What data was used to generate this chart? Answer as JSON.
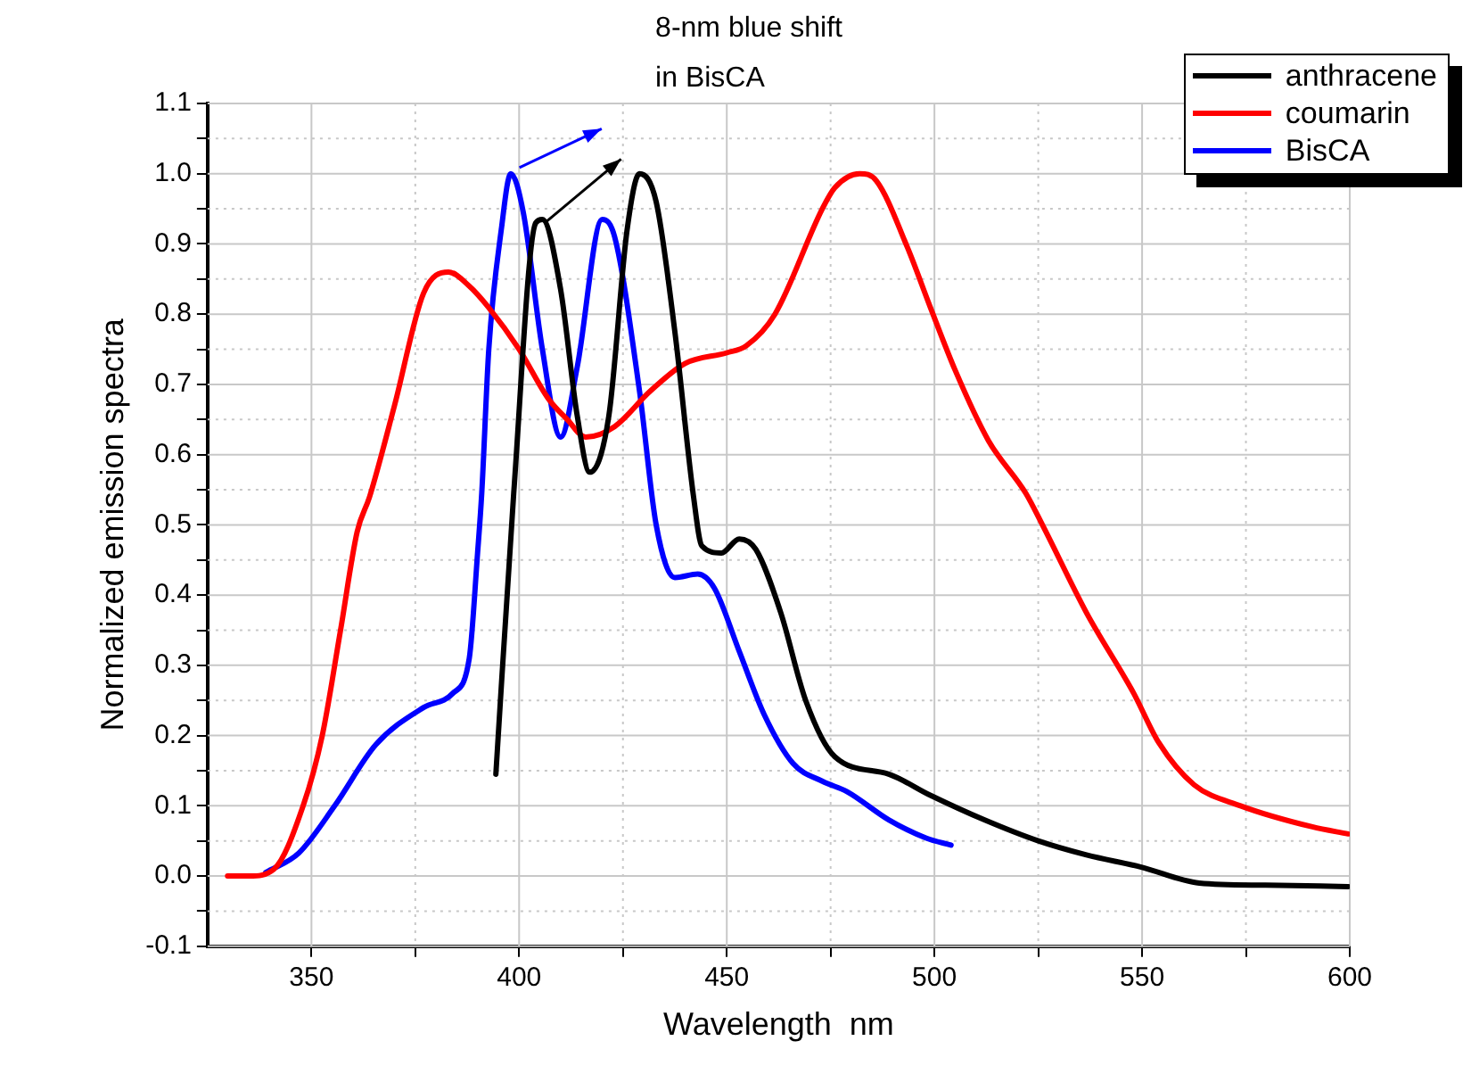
{
  "chart_data": {
    "type": "line",
    "xlabel": "Wavelength  nm",
    "ylabel": "Normalized emission spectra",
    "annotations": [
      "8-nm blue shift\nin BisCA"
    ],
    "xlim": [
      325,
      600
    ],
    "xticks": [
      350,
      {
        "value": 375,
        "label": null
      },
      400,
      {
        "value": 425,
        "label": null
      },
      450,
      {
        "value": 475,
        "label": null
      },
      500,
      {
        "value": 525,
        "label": null
      },
      550,
      {
        "value": 575,
        "label": null
      },
      600
    ],
    "ylim": [
      -0.1,
      1.1
    ],
    "yticks": [
      -0.1,
      {
        "value": -0.05,
        "label": null
      },
      {
        "value": 0,
        "label": "0.0"
      },
      {
        "value": 0.05,
        "label": null
      },
      0.1,
      {
        "value": 0.15,
        "label": null
      },
      0.2,
      {
        "value": 0.25,
        "label": null
      },
      0.3,
      {
        "value": 0.35,
        "label": null
      },
      0.4,
      {
        "value": 0.45,
        "label": null
      },
      0.5,
      {
        "value": 0.55,
        "label": null
      },
      0.6,
      {
        "value": 0.65,
        "label": null
      },
      0.7,
      {
        "value": 0.75,
        "label": null
      },
      0.8,
      {
        "value": 0.85,
        "label": null
      },
      0.9,
      {
        "value": 0.95,
        "label": null
      },
      {
        "value": 1,
        "label": "1.0"
      },
      {
        "value": 1.05,
        "label": null
      },
      1.1
    ],
    "grid": true,
    "legend": "top right",
    "marker": "none",
    "line_style": "solid",
    "series": [
      {
        "name": "anthracene",
        "color": "#000000",
        "x": [
          394.4,
          398.7,
          404,
          405.6,
          410,
          414,
          417,
          421.6,
          426,
          429,
          433,
          437.5,
          442,
          444,
          448.7,
          453,
          457,
          463,
          469,
          476,
          489,
          499,
          512,
          525,
          536.6,
          549.6,
          563.8,
          579.7,
          599.6
        ],
        "values": [
          0.145,
          0.545,
          0.93,
          0.935,
          0.835,
          0.655,
          0.575,
          0.655,
          0.92,
          1.0,
          0.96,
          0.775,
          0.54,
          0.47,
          0.46,
          0.48,
          0.465,
          0.375,
          0.25,
          0.17,
          0.145,
          0.115,
          0.08,
          0.05,
          0.03,
          0.013,
          -0.01,
          -0.013,
          -0.015
        ]
      },
      {
        "name": "coumarin",
        "color": "#ff0000",
        "x": [
          329.8,
          335,
          341,
          348,
          352.6,
          357,
          361,
          364,
          370,
          377,
          383,
          388,
          392.6,
          400,
          407,
          411.6,
          416,
          423,
          431.5,
          440,
          450,
          454.7,
          461.6,
          473,
          476,
          482,
          486,
          493.5,
          499,
          505,
          513,
          522,
          526,
          536.6,
          548,
          554,
          562.5,
          573.7,
          591,
          599.6
        ],
        "values": [
          0.0,
          0.0,
          0.01,
          0.1,
          0.2,
          0.35,
          0.49,
          0.54,
          0.67,
          0.83,
          0.86,
          0.84,
          0.81,
          0.75,
          0.68,
          0.65,
          0.625,
          0.64,
          0.69,
          0.73,
          0.745,
          0.755,
          0.8,
          0.95,
          0.98,
          1.0,
          0.99,
          0.895,
          0.81,
          0.72,
          0.62,
          0.545,
          0.5,
          0.375,
          0.26,
          0.19,
          0.13,
          0.1,
          0.07,
          0.06
        ]
      },
      {
        "name": "BisCA",
        "color": "#0000ff",
        "x": [
          339,
          347,
          355.6,
          365.5,
          377,
          384,
          388,
          390,
          391,
          392.7,
          395.7,
          398,
          401,
          405.6,
          410,
          414,
          420,
          423,
          429,
          433,
          437.5,
          443,
          447,
          453,
          459,
          466,
          473,
          479,
          489,
          498,
          504
        ],
        "values": [
          0.005,
          0.033,
          0.1,
          0.187,
          0.24,
          0.26,
          0.31,
          0.46,
          0.545,
          0.75,
          0.92,
          1.0,
          0.945,
          0.75,
          0.625,
          0.725,
          0.935,
          0.91,
          0.69,
          0.5,
          0.425,
          0.43,
          0.41,
          0.32,
          0.23,
          0.16,
          0.135,
          0.12,
          0.08,
          0.054,
          0.044
        ]
      }
    ]
  }
}
